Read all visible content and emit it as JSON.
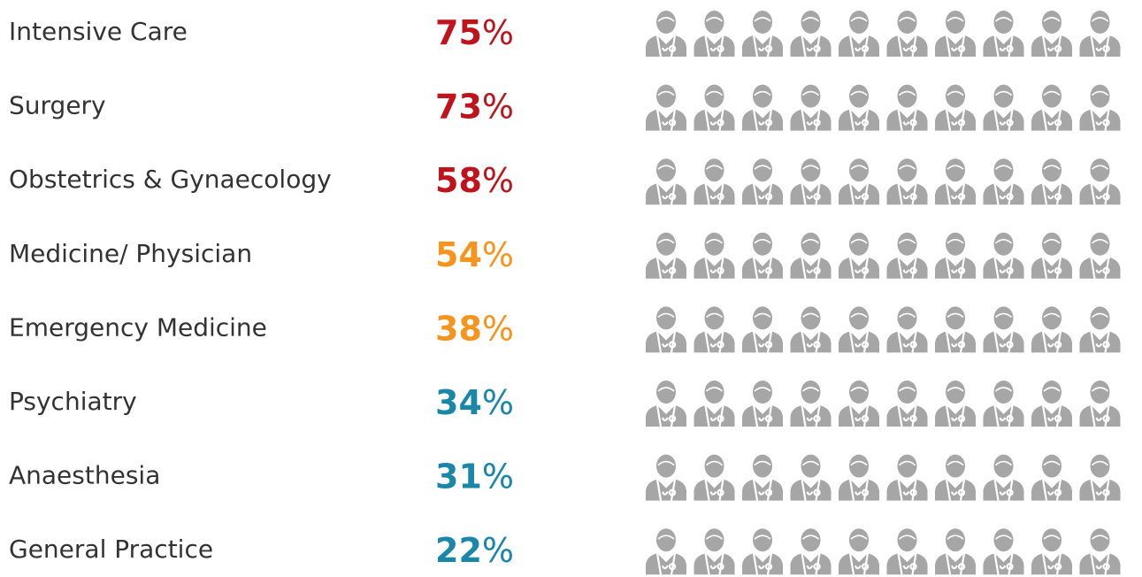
{
  "chart_data": {
    "type": "pictogram",
    "categories": [
      "Intensive Care",
      "Surgery",
      "Obstetrics & Gynaecology",
      "Medicine/ Physician",
      "Emergency Medicine",
      "Psychiatry",
      "Anaesthesia",
      "General Practice"
    ],
    "values": [
      75,
      73,
      58,
      54,
      38,
      34,
      31,
      22
    ],
    "value_unit": "%",
    "colors": [
      "#c0141c",
      "#c0141c",
      "#c0141c",
      "#f7941d",
      "#f7941d",
      "#1a87a8",
      "#1a87a8",
      "#1a87a8"
    ],
    "empty_color": "#a6a6a6",
    "ylim": [
      0,
      100
    ]
  }
}
